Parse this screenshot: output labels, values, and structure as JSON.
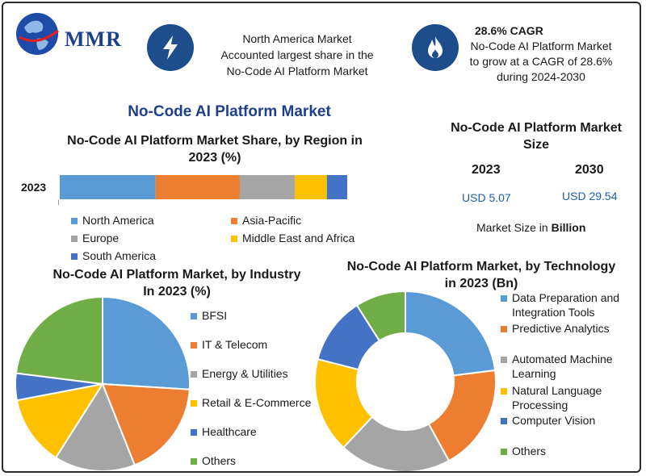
{
  "brand": {
    "logo_text": "MMR"
  },
  "header": {
    "fact1": [
      "North America Market",
      "Accounted largest share in the",
      "No-Code AI Platform Market"
    ],
    "fact2_title": "28.6% CAGR",
    "fact2": [
      "No-Code AI Platform Market",
      "to grow at a CAGR of 28.6%",
      "during 2024-2030"
    ]
  },
  "main_title": "No-Code AI Platform Market",
  "size_panel": {
    "title": [
      "No-Code AI Platform Market",
      "Size"
    ],
    "year1": "2023",
    "year2": "2030",
    "value1": "USD 5.07",
    "value2": "USD 29.54",
    "unit_prefix": "Market Size in ",
    "unit_bold": "Billion"
  },
  "colors": {
    "blue": "#5b9bd5",
    "orange": "#ed7d31",
    "gray": "#a5a5a5",
    "yellow": "#ffc000",
    "navy": "#4472c4",
    "green": "#70ad47"
  },
  "chart_data": [
    {
      "type": "bar",
      "title": "No-Code AI Platform Market Share, by Region in 2023 (%)",
      "title_lines": [
        "No-Code AI Platform Market Share, by Region in",
        "2023 (%)"
      ],
      "stacked": true,
      "orientation": "horizontal",
      "categories": [
        "2023"
      ],
      "series": [
        {
          "name": "North America",
          "values": [
            33
          ]
        },
        {
          "name": "Asia-Pacific",
          "values": [
            29
          ]
        },
        {
          "name": "Europe",
          "values": [
            19
          ]
        },
        {
          "name": "Middle East and Africa",
          "values": [
            11
          ]
        },
        {
          "name": "South America",
          "values": [
            7
          ]
        }
      ]
    },
    {
      "type": "pie",
      "title": "No-Code AI Platform Market, by Industry In 2023 (%)",
      "title_lines": [
        "No-Code AI Platform Market, by Industry",
        "In 2023 (%)"
      ],
      "labels": [
        "BFSI",
        "IT & Telecom",
        "Energy & Utilities",
        "Retail & E-Commerce",
        "Healthcare",
        "Others"
      ],
      "values": [
        26,
        18,
        15,
        13,
        5,
        23
      ]
    },
    {
      "type": "pie",
      "donut": true,
      "title": "No-Code AI Platform Market, by Technology in 2023 (Bn)",
      "title_lines": [
        "No-Code AI Platform Market, by Technology",
        "in 2023 (Bn)"
      ],
      "labels": [
        [
          "Data Preparation and",
          "Integration Tools"
        ],
        [
          "Predictive Analytics"
        ],
        [
          "Automated Machine",
          "Learning"
        ],
        [
          "Natural Language",
          "Processing"
        ],
        [
          "Computer Vision"
        ],
        [
          "Others"
        ]
      ],
      "values": [
        23,
        19,
        20,
        17,
        12,
        9
      ]
    }
  ]
}
